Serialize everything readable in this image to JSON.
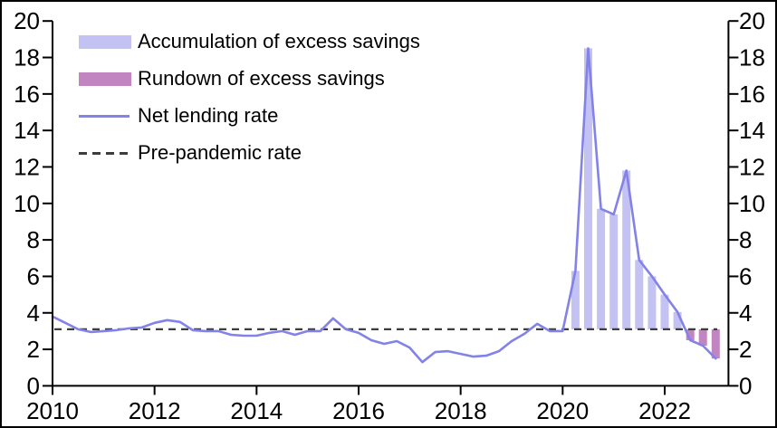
{
  "chart_data": {
    "type": "combo-line-bar",
    "title": "",
    "y_axis": {
      "side": "both",
      "min": 0,
      "max": 20,
      "tick_step": 2,
      "ticks": [
        0,
        2,
        4,
        6,
        8,
        10,
        12,
        14,
        16,
        18,
        20
      ]
    },
    "x_axis": {
      "ticks": [
        2010,
        2012,
        2014,
        2016,
        2018,
        2020,
        2022
      ],
      "range_years": [
        2010,
        2023.25
      ]
    },
    "grid": false,
    "legend_position": "top-left",
    "baseline": {
      "name": "Pre-pandemic rate",
      "value": 3.1,
      "style": "dashed",
      "color": "#3d3d3d"
    },
    "line": {
      "name": "Net lending rate",
      "color": "#8282e8",
      "quarters": [
        "2010 Q1",
        "2010 Q2",
        "2010 Q3",
        "2010 Q4",
        "2011 Q1",
        "2011 Q2",
        "2011 Q3",
        "2011 Q4",
        "2012 Q1",
        "2012 Q2",
        "2012 Q3",
        "2012 Q4",
        "2013 Q1",
        "2013 Q2",
        "2013 Q3",
        "2013 Q4",
        "2014 Q1",
        "2014 Q2",
        "2014 Q3",
        "2014 Q4",
        "2015 Q1",
        "2015 Q2",
        "2015 Q3",
        "2015 Q4",
        "2016 Q1",
        "2016 Q2",
        "2016 Q3",
        "2016 Q4",
        "2017 Q1",
        "2017 Q2",
        "2017 Q3",
        "2017 Q4",
        "2018 Q1",
        "2018 Q2",
        "2018 Q3",
        "2018 Q4",
        "2019 Q1",
        "2019 Q2",
        "2019 Q3",
        "2019 Q4",
        "2020 Q1",
        "2020 Q2",
        "2020 Q3",
        "2020 Q4",
        "2021 Q1",
        "2021 Q2",
        "2021 Q3",
        "2021 Q4",
        "2022 Q1",
        "2022 Q2",
        "2022 Q3",
        "2022 Q4",
        "2023 Q1"
      ],
      "values": [
        3.8,
        3.45,
        3.1,
        2.95,
        3.0,
        3.05,
        3.15,
        3.2,
        3.45,
        3.6,
        3.5,
        3.05,
        3.0,
        3.0,
        2.8,
        2.75,
        2.75,
        2.9,
        3.0,
        2.8,
        3.0,
        3.0,
        3.7,
        3.1,
        2.9,
        2.5,
        2.3,
        2.45,
        2.1,
        1.3,
        1.85,
        1.9,
        1.75,
        1.6,
        1.65,
        1.9,
        2.45,
        2.85,
        3.4,
        3.0,
        3.0,
        6.3,
        18.5,
        9.7,
        9.4,
        11.8,
        6.9,
        6.0,
        5.0,
        4.05,
        2.5,
        2.2,
        1.5
      ]
    },
    "bars": {
      "accumulation": {
        "name": "Accumulation of excess savings",
        "color": "#c4c2f2",
        "from_quarter": "2020 Q2",
        "to_quarter": "2022 Q2"
      },
      "rundown": {
        "name": "Rundown of excess savings",
        "color": "#c186c2",
        "from_quarter": "2022 Q3",
        "to_quarter": "2023 Q1"
      }
    }
  }
}
